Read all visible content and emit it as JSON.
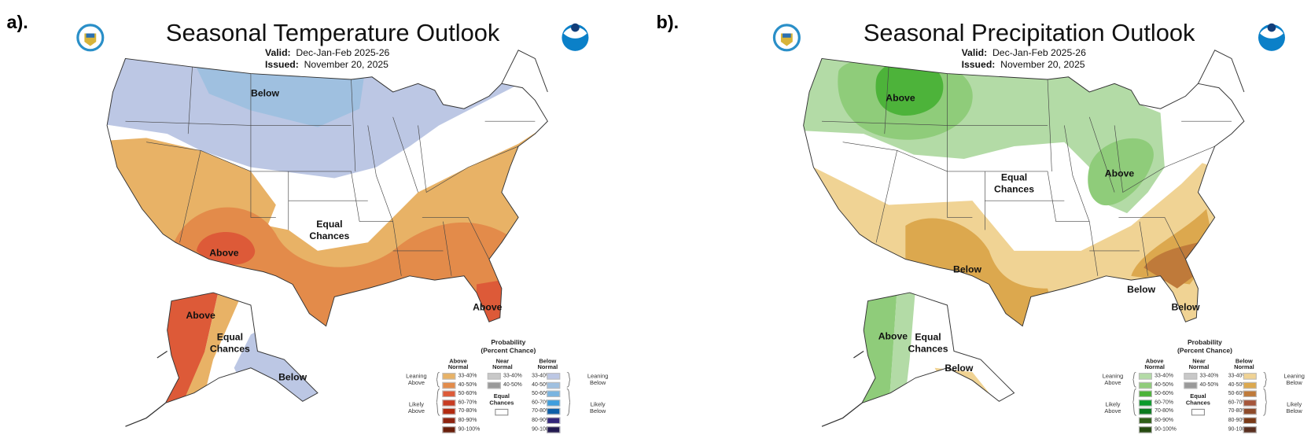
{
  "panels": [
    {
      "id": "a",
      "label": "a).",
      "title": "Seasonal Temperature Outlook",
      "valid_label": "Valid:",
      "valid": "Dec-Jan-Feb 2025-26",
      "issued_label": "Issued:",
      "issued": "November 20, 2025",
      "map_labels": {
        "north": "Below",
        "center1": "Equal",
        "center2": "Chances",
        "sw": "Above",
        "fl": "Above",
        "ak_w": "Above",
        "ak_c1": "Equal",
        "ak_c2": "Chances",
        "ak_se": "Below"
      },
      "legend": {
        "heading1": "Probability",
        "heading2": "(Percent Chance)",
        "col_above": [
          "Above",
          "Normal"
        ],
        "col_near": [
          "Near",
          "Normal"
        ],
        "col_below": [
          "Below",
          "Normal"
        ],
        "leaning_above": [
          "Leaning",
          "Above"
        ],
        "likely_above": [
          "Likely",
          "Above"
        ],
        "leaning_below": [
          "Leaning",
          "Below"
        ],
        "likely_below": [
          "Likely",
          "Below"
        ],
        "equal": [
          "Equal",
          "Chances"
        ],
        "ranges": [
          "33-40%",
          "40-50%",
          "50-60%",
          "60-70%",
          "70-80%",
          "80-90%",
          "90-100%"
        ],
        "near_ranges": [
          "33-40%",
          "40-50%"
        ],
        "above_colors": [
          "#e8b266",
          "#e38b4a",
          "#dd5a38",
          "#c83b22",
          "#b22a10",
          "#8e2410",
          "#6a1e0a"
        ],
        "near_colors": [
          "#c8c8c8",
          "#999999"
        ],
        "below_colors": [
          "#bcc7e4",
          "#9fc0e0",
          "#7ab4e0",
          "#3e9ede",
          "#0d5fa8",
          "#33267a",
          "#231a50"
        ]
      }
    },
    {
      "id": "b",
      "label": "b).",
      "title": "Seasonal Precipitation Outlook",
      "valid_label": "Valid:",
      "valid": "Dec-Jan-Feb 2025-26",
      "issued_label": "Issued:",
      "issued": "November 20, 2025",
      "map_labels": {
        "north": "Above",
        "center1": "Equal",
        "center2": "Chances",
        "ohio": "Above",
        "tx": "Below",
        "se": "Below",
        "fl": "Below",
        "ak_w": "Above",
        "ak_c1": "Equal",
        "ak_c2": "Chances",
        "ak_s": "Below"
      },
      "legend": {
        "heading1": "Probability",
        "heading2": "(Percent Chance)",
        "col_above": [
          "Above",
          "Normal"
        ],
        "col_near": [
          "Near",
          "Normal"
        ],
        "col_below": [
          "Below",
          "Normal"
        ],
        "leaning_above": [
          "Leaning",
          "Above"
        ],
        "likely_above": [
          "Likely",
          "Above"
        ],
        "leaning_below": [
          "Leaning",
          "Below"
        ],
        "likely_below": [
          "Likely",
          "Below"
        ],
        "equal": [
          "Equal",
          "Chances"
        ],
        "ranges": [
          "33-40%",
          "40-50%",
          "50-60%",
          "60-70%",
          "70-80%",
          "80-90%",
          "90-100%"
        ],
        "near_ranges": [
          "33-40%",
          "40-50%"
        ],
        "above_colors": [
          "#b3dba6",
          "#8fcc7a",
          "#4db33a",
          "#0a9a2a",
          "#0a7a1e",
          "#2f5e18",
          "#264a10"
        ],
        "near_colors": [
          "#c8c8c8",
          "#999999"
        ],
        "below_colors": [
          "#f0d394",
          "#dca84e",
          "#bf7a3a",
          "#a5553a",
          "#8e4a2a",
          "#7a3a18",
          "#5a3020"
        ]
      }
    }
  ]
}
